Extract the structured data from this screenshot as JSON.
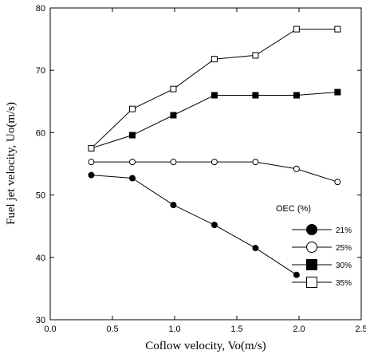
{
  "chart_data": {
    "type": "line",
    "xlabel": "Coflow velocity, Vo(m/s)",
    "ylabel": "Fuel jet velocity, Uo(m/s)",
    "xlim": [
      0.0,
      2.5
    ],
    "ylim": [
      30,
      80
    ],
    "x_ticks": [
      0.0,
      0.5,
      1.0,
      1.5,
      2.0,
      2.5
    ],
    "x_tick_labels": [
      "0.0",
      "0.5",
      "1.0",
      "1.5",
      "2.0",
      "2.5"
    ],
    "y_ticks": [
      30,
      40,
      50,
      60,
      70,
      80
    ],
    "y_tick_labels": [
      "30",
      "40",
      "50",
      "60",
      "70",
      "80"
    ],
    "grid": false,
    "legend": {
      "title": "OEC (%)",
      "placement": "lower-right"
    },
    "series": [
      {
        "name": "21%",
        "marker": "filled-circle",
        "x": [
          0.33,
          0.66,
          0.99,
          1.32,
          1.65,
          1.98
        ],
        "y": [
          53.2,
          52.7,
          48.4,
          45.2,
          41.5,
          37.2
        ]
      },
      {
        "name": "25%",
        "marker": "open-circle",
        "x": [
          0.33,
          0.66,
          0.99,
          1.32,
          1.65,
          1.98,
          2.31
        ],
        "y": [
          55.3,
          55.3,
          55.3,
          55.3,
          55.3,
          54.2,
          52.1
        ]
      },
      {
        "name": "30%",
        "marker": "filled-square",
        "x": [
          0.33,
          0.66,
          0.99,
          1.32,
          1.65,
          1.98,
          2.31
        ],
        "y": [
          57.5,
          59.6,
          62.8,
          66.0,
          66.0,
          66.0,
          66.5
        ]
      },
      {
        "name": "35%",
        "marker": "open-square",
        "x": [
          0.33,
          0.66,
          0.99,
          1.32,
          1.65,
          1.98,
          2.31
        ],
        "y": [
          57.5,
          63.8,
          67.0,
          71.8,
          72.4,
          76.6,
          76.6
        ]
      }
    ]
  }
}
